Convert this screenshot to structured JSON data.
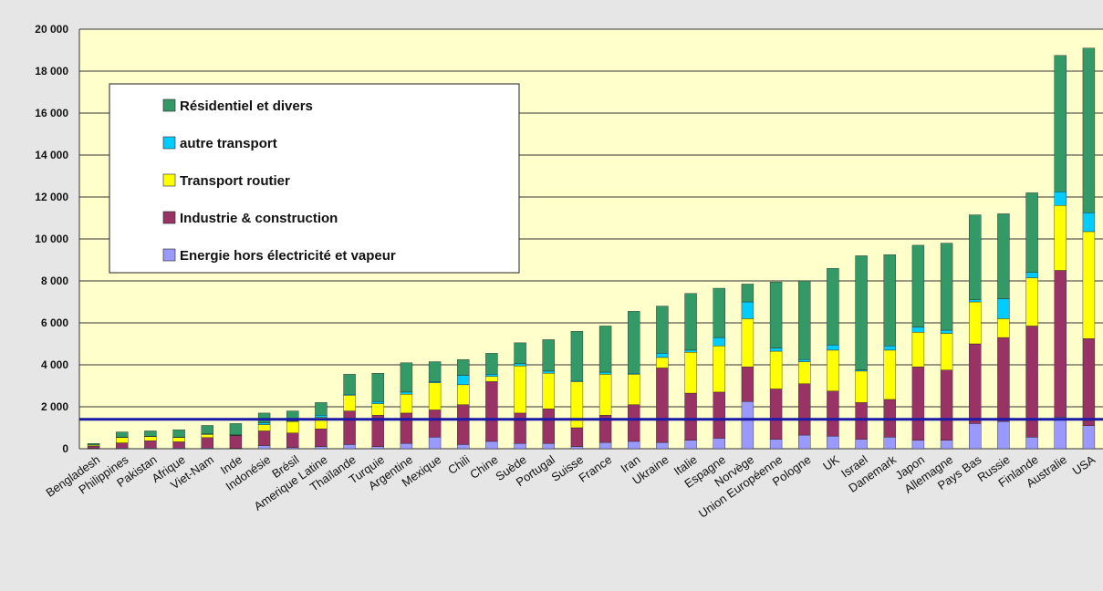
{
  "chart_data": {
    "type": "bar",
    "stacked": true,
    "title": "",
    "xlabel": "",
    "ylabel": "",
    "ylim": [
      0,
      20000
    ],
    "yticks": [
      0,
      2000,
      4000,
      6000,
      8000,
      10000,
      12000,
      14000,
      16000,
      18000,
      20000
    ],
    "ytick_labels": [
      "0",
      "2 000",
      "4 000",
      "6 000",
      "8 000",
      "10 000",
      "12 000",
      "14 000",
      "16 000",
      "18 000",
      "20 000"
    ],
    "grid": "horizontal",
    "legend_position": "top-left",
    "reference_line": {
      "value": 1400,
      "color": "#1a1aa8"
    },
    "categories": [
      "Bengladesh",
      "Philippines",
      "Pakistan",
      "Afrique",
      "Viet-Nam",
      "Inde",
      "Indonésie",
      "Brésil",
      "Amerique Latine",
      "Thaïlande",
      "Turquie",
      "Argentine",
      "Mexique",
      "Chili",
      "Chine",
      "Suède",
      "Portugal",
      "Suisse",
      "France",
      "Iran",
      "Ukraine",
      "Italie",
      "Espagne",
      "Norvège",
      "Union Européenne",
      "Pologne",
      "UK",
      "Israel",
      "Danemark",
      "Japon",
      "Allemagne",
      "Pays Bas",
      "Russie",
      "Finlande",
      "Australie",
      "USA"
    ],
    "series": [
      {
        "name": "Energie hors électricité et vapeur",
        "color": "#9999ff",
        "values": [
          20,
          30,
          30,
          30,
          30,
          20,
          150,
          50,
          100,
          200,
          100,
          250,
          550,
          200,
          350,
          250,
          250,
          100,
          300,
          350,
          300,
          400,
          500,
          2250,
          450,
          650,
          600,
          450,
          550,
          400,
          400,
          1200,
          1300,
          550,
          1500,
          1100
        ]
      },
      {
        "name": "Industrie & construction",
        "color": "#993366",
        "values": [
          100,
          250,
          350,
          300,
          500,
          600,
          700,
          700,
          850,
          1600,
          1500,
          1450,
          1300,
          1900,
          2850,
          1450,
          1650,
          900,
          1300,
          1750,
          3550,
          2250,
          2200,
          1650,
          2400,
          2450,
          2150,
          1750,
          1800,
          3500,
          3350,
          3800,
          4000,
          5300,
          7000,
          4150
        ]
      },
      {
        "name": "Transport routier",
        "color": "#ffff00",
        "values": [
          50,
          250,
          200,
          200,
          150,
          20,
          300,
          550,
          550,
          750,
          550,
          900,
          1300,
          950,
          250,
          2250,
          1700,
          2200,
          1950,
          1450,
          500,
          1950,
          2200,
          2300,
          1800,
          1050,
          1950,
          1500,
          2350,
          1650,
          1750,
          2000,
          900,
          2300,
          3100,
          5100
        ]
      },
      {
        "name": "autre transport",
        "color": "#00ccff",
        "values": [
          10,
          20,
          20,
          20,
          30,
          20,
          80,
          20,
          100,
          50,
          100,
          100,
          50,
          450,
          100,
          100,
          100,
          50,
          100,
          50,
          200,
          100,
          400,
          800,
          150,
          100,
          250,
          50,
          200,
          250,
          150,
          100,
          950,
          250,
          650,
          900
        ]
      },
      {
        "name": "Résidentiel et divers",
        "color": "#339966",
        "values": [
          70,
          250,
          250,
          350,
          400,
          540,
          470,
          480,
          600,
          950,
          1350,
          1400,
          950,
          750,
          1000,
          1000,
          1500,
          2350,
          2200,
          2950,
          2250,
          2700,
          2350,
          850,
          3150,
          3750,
          3650,
          5450,
          4350,
          3900,
          4150,
          4050,
          4050,
          3800,
          6500,
          7850
        ]
      }
    ]
  }
}
